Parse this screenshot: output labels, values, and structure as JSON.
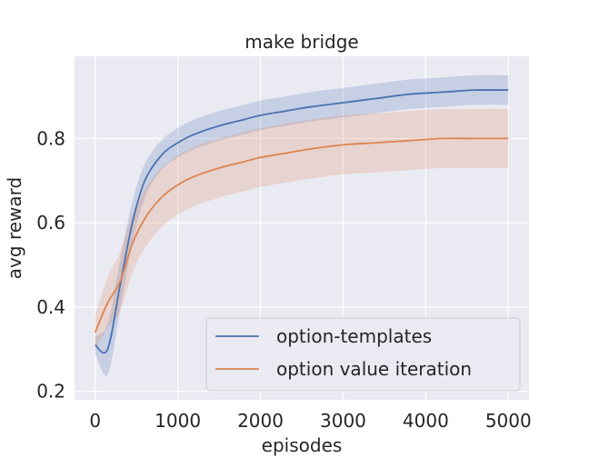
{
  "chart_data": {
    "type": "line",
    "title": "make bridge",
    "xlabel": "episodes",
    "ylabel": "avg reward",
    "xlim": [
      -250,
      5250
    ],
    "ylim": [
      0.18,
      0.995
    ],
    "xticks": [
      0,
      1000,
      2000,
      3000,
      4000,
      5000
    ],
    "yticks": [
      0.2,
      0.4,
      0.6,
      0.8
    ],
    "xtick_labels": [
      "0",
      "1000",
      "2000",
      "3000",
      "4000",
      "5000"
    ],
    "ytick_labels": [
      "0.2",
      "0.4",
      "0.6",
      "0.8"
    ],
    "grid": true,
    "legend_position": "lower-right",
    "series": [
      {
        "name": "option-templates",
        "color": "#4c72b0",
        "x": [
          0,
          150,
          300,
          450,
          600,
          800,
          1000,
          1200,
          1500,
          1800,
          2000,
          2300,
          2600,
          3000,
          3400,
          3800,
          4200,
          4600,
          5000
        ],
        "y": [
          0.31,
          0.3,
          0.45,
          0.6,
          0.7,
          0.76,
          0.79,
          0.81,
          0.83,
          0.845,
          0.855,
          0.865,
          0.875,
          0.885,
          0.895,
          0.905,
          0.91,
          0.915,
          0.915
        ],
        "band": [
          0.02,
          0.06,
          0.06,
          0.05,
          0.04,
          0.035,
          0.035,
          0.035,
          0.035,
          0.035,
          0.035,
          0.035,
          0.035,
          0.035,
          0.035,
          0.035,
          0.035,
          0.035,
          0.035
        ]
      },
      {
        "name": "option value iteration",
        "color": "#dd8452",
        "x": [
          0,
          150,
          300,
          450,
          600,
          800,
          1000,
          1200,
          1500,
          1800,
          2000,
          2300,
          2600,
          3000,
          3400,
          3800,
          4200,
          4600,
          5000
        ],
        "y": [
          0.34,
          0.41,
          0.46,
          0.55,
          0.61,
          0.66,
          0.69,
          0.71,
          0.73,
          0.745,
          0.755,
          0.765,
          0.775,
          0.785,
          0.79,
          0.795,
          0.8,
          0.8,
          0.8
        ],
        "band": [
          0.04,
          0.06,
          0.07,
          0.07,
          0.07,
          0.07,
          0.07,
          0.07,
          0.07,
          0.07,
          0.07,
          0.07,
          0.07,
          0.07,
          0.07,
          0.07,
          0.07,
          0.07,
          0.07
        ]
      }
    ]
  }
}
